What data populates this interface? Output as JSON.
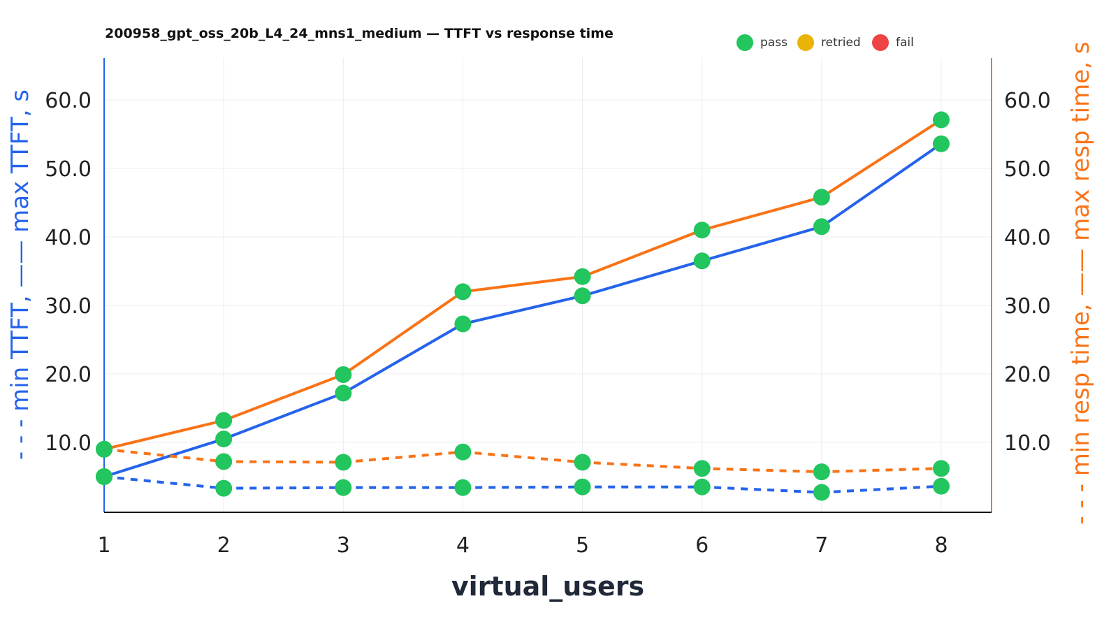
{
  "chart_data": {
    "type": "line",
    "title": "200958_gpt_oss_20b_L4_24_mns1_medium — TTFT vs response time",
    "xlabel": "virtual_users",
    "ylabel_left": "- - - min TTFT, —— max TTFT, s",
    "ylabel_right": "- - - min resp time, —— max resp time, s",
    "x": [
      1,
      2,
      3,
      4,
      5,
      6,
      7,
      8
    ],
    "ylim": [
      0,
      66
    ],
    "yticks": [
      "10.0",
      "20.0",
      "30.0",
      "40.0",
      "50.0",
      "60.0"
    ],
    "xticks": [
      "1",
      "2",
      "3",
      "4",
      "5",
      "6",
      "7",
      "8"
    ],
    "grid": true,
    "legend_position": "top-right",
    "legend": [
      {
        "label": "pass",
        "color": "#22c55e"
      },
      {
        "label": "retried",
        "color": "#eab308"
      },
      {
        "label": "fail",
        "color": "#ef4444"
      }
    ],
    "series": [
      {
        "key": "max_ttft",
        "axis": "left",
        "style": "solid",
        "color": "#2563eb",
        "values": [
          5.0,
          10.5,
          17.2,
          27.3,
          31.4,
          36.5,
          41.5,
          53.6
        ]
      },
      {
        "key": "min_ttft",
        "axis": "left",
        "style": "dashed",
        "color": "#2563eb",
        "values": [
          5.0,
          3.3,
          3.4,
          3.4,
          3.5,
          3.5,
          2.7,
          3.6
        ]
      },
      {
        "key": "max_resp",
        "axis": "right",
        "style": "solid",
        "color": "#f97316",
        "values": [
          9.0,
          13.2,
          19.9,
          32.0,
          34.2,
          41.0,
          45.8,
          57.1
        ]
      },
      {
        "key": "min_resp",
        "axis": "right",
        "style": "dashed",
        "color": "#f97316",
        "values": [
          9.0,
          7.2,
          7.1,
          8.6,
          7.1,
          6.2,
          5.7,
          6.2
        ]
      }
    ],
    "point_status": [
      "pass",
      "pass",
      "pass",
      "pass",
      "pass",
      "pass",
      "pass",
      "pass"
    ]
  }
}
